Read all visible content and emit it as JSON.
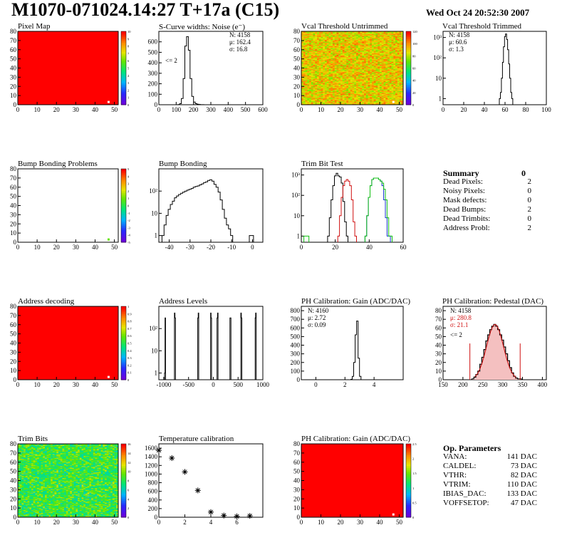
{
  "header": {
    "title": "M1070-071024.14:27 T+17a (C15)",
    "date": "Wed Oct 24 20:52:30 2007"
  },
  "colors": {
    "red_map": "#ff0000",
    "histogram": "#000000",
    "trim_red": "#d01010",
    "trim_blue": "#1030d0",
    "trim_green": "#10c010"
  },
  "palette_levels": {
    "pixel_map": [
      "0",
      "1",
      "2",
      "3",
      "4",
      "5",
      "6",
      "7",
      "8",
      "9",
      "10"
    ],
    "vcal_untrimmed": [
      "0",
      "20",
      "40",
      "60",
      "80",
      "100",
      "120"
    ],
    "bump_bonding": [
      "-5",
      "-4",
      "-3",
      "-2",
      "-1",
      "0",
      "1",
      "2",
      "3",
      "4",
      "5"
    ],
    "address_decoding": [
      "0",
      "0.1",
      "0.2",
      "0.3",
      "0.4",
      "0.5",
      "0.6",
      "0.7",
      "0.8",
      "0.9",
      "1"
    ],
    "trim_bits": [
      "0",
      "2",
      "4",
      "6",
      "8",
      "10",
      "12",
      "14",
      "16"
    ],
    "ph_gain_map": [
      "0",
      "0.5",
      "1",
      "1.5",
      "2",
      "2.5"
    ]
  },
  "plots": {
    "pixel_map": {
      "title": "Pixel Map"
    },
    "noise": {
      "title": "S-Curve widths: Noise (e⁻)",
      "stats": [
        "N: 4158",
        "μ: 162.4",
        "σ: 16.8"
      ],
      "underflow": "<= 2"
    },
    "vcal_untrimmed": {
      "title": "Vcal Threshold Untrimmed"
    },
    "vcal_trimmed": {
      "title": "Vcal Threshold Trimmed",
      "stats": [
        "N: 4158",
        "μ: 60.6",
        "σ: 1.3"
      ]
    },
    "bump_problems": {
      "title": "Bump Bonding Problems"
    },
    "bump_bonding": {
      "title": "Bump Bonding"
    },
    "trim_bit_test": {
      "title": "Trim Bit Test"
    },
    "address_decoding": {
      "title": "Address decoding"
    },
    "address_levels": {
      "title": "Address Levels"
    },
    "ph_gain": {
      "title": "PH Calibration: Gain (ADC/DAC)",
      "stats": [
        "N: 4160",
        "μ: 2.72",
        "σ: 0.09"
      ]
    },
    "ph_pedestal": {
      "title": "PH Calibration: Pedestal (DAC)",
      "stats": [
        "N: 4158",
        "μ: 280.8",
        "σ: 21.1"
      ],
      "underflow": "<= 2"
    },
    "trim_bits": {
      "title": "Trim Bits"
    },
    "temperature": {
      "title": "Temperature calibration"
    },
    "ph_gain_map": {
      "title": "PH Calibration: Gain (ADC/DAC)"
    }
  },
  "summary": {
    "title": "Summary",
    "total": "0",
    "rows": [
      {
        "label": "Dead Pixels:",
        "value": "2"
      },
      {
        "label": "Noisy Pixels:",
        "value": "0"
      },
      {
        "label": "Mask defects:",
        "value": "0"
      },
      {
        "label": "Dead Bumps:",
        "value": "2"
      },
      {
        "label": "Dead Trimbits:",
        "value": "0"
      },
      {
        "label": "Address Probl:",
        "value": "2"
      }
    ]
  },
  "op_parameters": {
    "title": "Op. Parameters",
    "rows": [
      {
        "label": "VANA:",
        "value": "141 DAC"
      },
      {
        "label": "CALDEL:",
        "value": "73 DAC"
      },
      {
        "label": "VTHR:",
        "value": "82 DAC"
      },
      {
        "label": "VTRIM:",
        "value": "110 DAC"
      },
      {
        "label": "IBIAS_DAC:",
        "value": "133 DAC"
      },
      {
        "label": "VOFFSETOP:",
        "value": "47 DAC"
      }
    ]
  },
  "chart_data": [
    {
      "type": "heatmap",
      "name": "pixel_map",
      "xlim": [
        0,
        52
      ],
      "ylim": [
        0,
        80
      ],
      "zlim": [
        0,
        10
      ],
      "xticks": [
        "0",
        "10",
        "20",
        "30",
        "40",
        "50"
      ],
      "yticks": [
        "0",
        "10",
        "20",
        "30",
        "40",
        "50",
        "60",
        "70",
        "80"
      ],
      "uniform_value": 10,
      "outliers": [
        {
          "x": 47,
          "y": 3,
          "z": 0
        }
      ]
    },
    {
      "type": "bar",
      "name": "noise",
      "xlim": [
        0,
        600
      ],
      "ylim": [
        0,
        700
      ],
      "xticks": [
        "0",
        "100",
        "200",
        "300",
        "400",
        "500",
        "600"
      ],
      "yticks": [
        "0",
        "100",
        "200",
        "300",
        "400",
        "500",
        "600"
      ],
      "x": [
        115,
        125,
        135,
        145,
        155,
        165,
        175,
        185,
        195,
        205,
        215,
        225,
        235,
        245,
        255
      ],
      "values": [
        2,
        10,
        60,
        250,
        560,
        650,
        520,
        250,
        80,
        25,
        10,
        5,
        3,
        1,
        1
      ]
    },
    {
      "type": "heatmap",
      "name": "vcal_untrimmed",
      "xlim": [
        0,
        52
      ],
      "ylim": [
        0,
        80
      ],
      "zlim": [
        0,
        130
      ],
      "xticks": [
        "0",
        "10",
        "20",
        "30",
        "40",
        "50"
      ],
      "yticks": [
        "0",
        "10",
        "20",
        "30",
        "40",
        "50",
        "60",
        "70",
        "80"
      ],
      "typical_range": [
        80,
        115
      ],
      "outliers": [
        {
          "x": 47,
          "y": 3,
          "z": 0
        }
      ]
    },
    {
      "type": "bar",
      "name": "vcal_trimmed",
      "log_y": true,
      "xlim": [
        0,
        100
      ],
      "ylim": [
        0.5,
        2000
      ],
      "xticks": [
        "0",
        "20",
        "40",
        "60",
        "80",
        "100"
      ],
      "yticks": [
        "1",
        "10",
        "10²",
        "10³"
      ],
      "x": [
        55,
        56,
        57,
        58,
        59,
        60,
        61,
        62,
        63,
        64,
        65,
        66,
        67
      ],
      "values": [
        1,
        2,
        10,
        60,
        350,
        1100,
        1500,
        800,
        250,
        50,
        10,
        2,
        1
      ]
    },
    {
      "type": "heatmap",
      "name": "bump_problems",
      "xlim": [
        0,
        52
      ],
      "ylim": [
        0,
        80
      ],
      "zlim": [
        -5,
        5
      ],
      "xticks": [
        "0",
        "10",
        "20",
        "30",
        "40",
        "50"
      ],
      "yticks": [
        "0",
        "10",
        "20",
        "30",
        "40",
        "50",
        "60",
        "70",
        "80"
      ],
      "outliers": [
        {
          "x": 47,
          "y": 3,
          "z": 1
        }
      ]
    },
    {
      "type": "bar",
      "name": "bump_bonding",
      "log_y": true,
      "xlim": [
        -45,
        5
      ],
      "ylim": [
        0.5,
        1000
      ],
      "xticks": [
        "-40",
        "-30",
        "-20",
        "-10",
        "0"
      ],
      "yticks": [
        "1",
        "10",
        "10²"
      ],
      "x": [
        -43,
        -42,
        -41,
        -40,
        -39,
        -38,
        -37,
        -36,
        -35,
        -34,
        -33,
        -32,
        -31,
        -30,
        -29,
        -28,
        -27,
        -26,
        -25,
        -24,
        -23,
        -22,
        -21,
        -20,
        -19,
        -18,
        -17,
        -16,
        -15,
        -14,
        -13,
        -12,
        -11,
        -10,
        -1,
        0
      ],
      "values": [
        1,
        3,
        8,
        15,
        25,
        35,
        50,
        60,
        70,
        80,
        90,
        100,
        110,
        120,
        130,
        150,
        160,
        170,
        190,
        210,
        240,
        260,
        300,
        320,
        280,
        200,
        150,
        90,
        40,
        15,
        6,
        3,
        2,
        1,
        1,
        1
      ]
    },
    {
      "type": "bar",
      "name": "trim_bit_test",
      "log_y": true,
      "xlim": [
        0,
        60
      ],
      "ylim": [
        0.5,
        2000
      ],
      "xticks": [
        "0",
        "20",
        "40",
        "60"
      ],
      "yticks": [
        "1",
        "10",
        "10²",
        "10³"
      ],
      "series": [
        {
          "color": "black",
          "x": [
            16,
            17,
            18,
            19,
            20,
            21,
            22,
            23,
            24,
            25,
            26,
            27
          ],
          "values": [
            1,
            8,
            60,
            300,
            900,
            1200,
            900,
            800,
            400,
            50,
            5,
            1
          ]
        },
        {
          "color": "red",
          "x": [
            22,
            23,
            24,
            25,
            26,
            27,
            28,
            29,
            30,
            31,
            32
          ],
          "values": [
            1,
            10,
            80,
            300,
            500,
            600,
            500,
            300,
            60,
            5,
            1
          ]
        },
        {
          "color": "blue",
          "x": [
            38,
            39,
            40,
            41,
            42,
            43,
            44,
            45,
            46,
            47,
            48,
            49,
            50,
            51,
            52
          ],
          "values": [
            1,
            10,
            80,
            300,
            600,
            700,
            700,
            700,
            600,
            500,
            300,
            60,
            8,
            1,
            1
          ]
        },
        {
          "color": "green",
          "x": [
            2,
            3,
            4,
            38,
            39,
            40,
            41,
            42,
            43,
            44,
            45,
            46,
            47,
            48,
            49,
            50,
            51,
            52,
            53
          ],
          "values": [
            1,
            1,
            1,
            1,
            10,
            80,
            300,
            600,
            700,
            700,
            700,
            600,
            500,
            400,
            200,
            60,
            8,
            1,
            1
          ]
        }
      ]
    },
    {
      "type": "heatmap",
      "name": "address_decoding",
      "xlim": [
        0,
        52
      ],
      "ylim": [
        0,
        80
      ],
      "zlim": [
        0,
        1
      ],
      "xticks": [
        "0",
        "10",
        "20",
        "30",
        "40",
        "50"
      ],
      "yticks": [
        "0",
        "10",
        "20",
        "30",
        "40",
        "50",
        "60",
        "70",
        "80"
      ],
      "uniform_value": 1,
      "outliers": [
        {
          "x": 47,
          "y": 3,
          "z": 0
        }
      ]
    },
    {
      "type": "bar",
      "name": "address_levels",
      "log_y": true,
      "xlim": [
        -1100,
        1000
      ],
      "ylim": [
        0.5,
        1000
      ],
      "xticks": [
        "-1000",
        "-500",
        "0",
        "500",
        "1000"
      ],
      "yticks": [
        "1",
        "10",
        "10²"
      ],
      "x": [
        -980,
        -970,
        -780,
        -770,
        -310,
        -300,
        -50,
        -40,
        80,
        90,
        340,
        350,
        560,
        570,
        850,
        860
      ],
      "values": [
        1,
        300,
        500,
        300,
        300,
        500,
        500,
        300,
        300,
        500,
        300,
        300,
        500,
        300,
        300,
        500
      ]
    },
    {
      "type": "bar",
      "name": "ph_gain",
      "xlim": [
        -1,
        6
      ],
      "ylim": [
        0,
        850
      ],
      "xticks": [
        "0",
        "2",
        "4"
      ],
      "yticks": [
        "0",
        "100",
        "200",
        "300",
        "400",
        "500",
        "600",
        "700",
        "800"
      ],
      "x": [
        2.45,
        2.55,
        2.65,
        2.75,
        2.85,
        2.95,
        3.05
      ],
      "values": [
        5,
        40,
        200,
        520,
        680,
        250,
        40
      ]
    },
    {
      "type": "bar",
      "name": "ph_pedestal",
      "xlim": [
        150,
        410
      ],
      "ylim": [
        0,
        85
      ],
      "xticks": [
        "150",
        "200",
        "250",
        "300",
        "350",
        "400"
      ],
      "yticks": [
        "0",
        "10",
        "20",
        "30",
        "40",
        "50",
        "60",
        "70",
        "80"
      ],
      "mean": 280.8,
      "sigma": 21.1,
      "x": [
        225,
        230,
        235,
        240,
        245,
        250,
        255,
        260,
        265,
        270,
        275,
        280,
        285,
        290,
        295,
        300,
        305,
        310,
        315,
        320,
        325,
        330,
        335,
        340,
        345
      ],
      "values": [
        1,
        3,
        6,
        10,
        18,
        26,
        35,
        45,
        52,
        58,
        62,
        64,
        62,
        58,
        52,
        46,
        38,
        30,
        22,
        14,
        8,
        4,
        2,
        1,
        1
      ]
    },
    {
      "type": "heatmap",
      "name": "trim_bits",
      "xlim": [
        0,
        52
      ],
      "ylim": [
        0,
        80
      ],
      "zlim": [
        0,
        16
      ],
      "xticks": [
        "0",
        "10",
        "20",
        "30",
        "40",
        "50"
      ],
      "yticks": [
        "0",
        "10",
        "20",
        "30",
        "40",
        "50",
        "60",
        "70",
        "80"
      ],
      "typical_range": [
        6,
        11
      ]
    },
    {
      "type": "scatter",
      "name": "temperature",
      "xlim": [
        0,
        8
      ],
      "ylim": [
        0,
        1700
      ],
      "xticks": [
        "0",
        "2",
        "4",
        "6"
      ],
      "yticks": [
        "0",
        "200",
        "400",
        "600",
        "800",
        "1000",
        "1200",
        "1400",
        "1600"
      ],
      "x": [
        0,
        1,
        2,
        3,
        4,
        5,
        6,
        7
      ],
      "values": [
        1550,
        1370,
        1050,
        620,
        120,
        40,
        20,
        30
      ]
    },
    {
      "type": "heatmap",
      "name": "ph_gain_map",
      "xlim": [
        0,
        52
      ],
      "ylim": [
        0,
        80
      ],
      "zlim": [
        0,
        2.7
      ],
      "xticks": [
        "0",
        "10",
        "20",
        "30",
        "40",
        "50"
      ],
      "yticks": [
        "0",
        "10",
        "20",
        "30",
        "40",
        "50",
        "60",
        "70",
        "80"
      ],
      "uniform_value": 2.7,
      "outliers": [
        {
          "x": 47,
          "y": 3,
          "z": 0
        }
      ]
    }
  ]
}
